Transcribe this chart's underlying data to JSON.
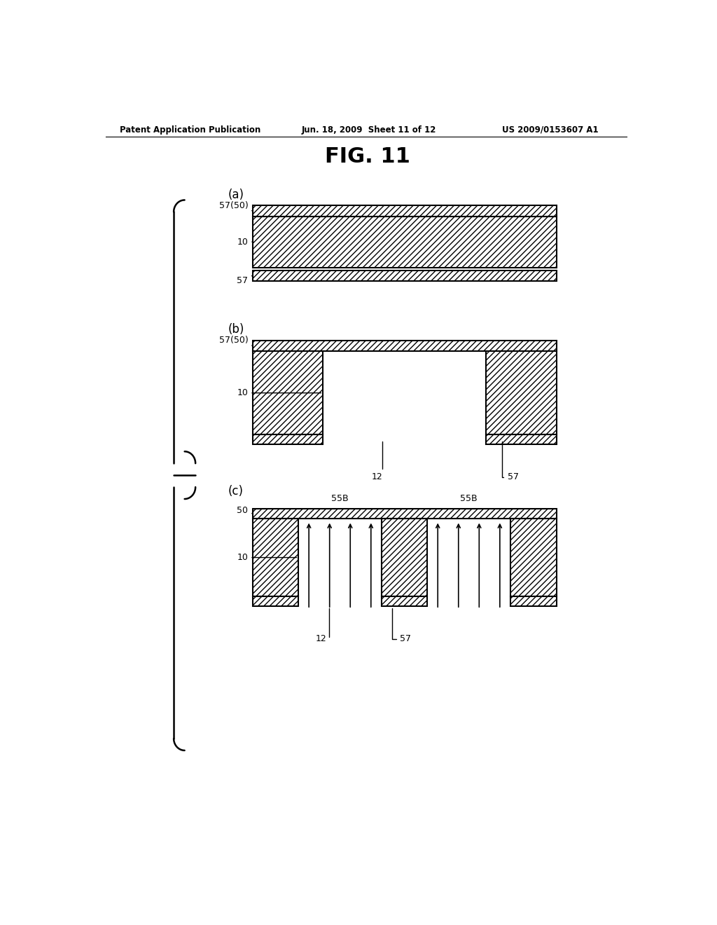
{
  "title": "FIG. 11",
  "header_left": "Patent Application Publication",
  "header_center": "Jun. 18, 2009  Sheet 11 of 12",
  "header_right": "US 2009/0153607 A1",
  "bg_color": "#ffffff",
  "hatch_color": "#000000",
  "line_color": "#000000"
}
